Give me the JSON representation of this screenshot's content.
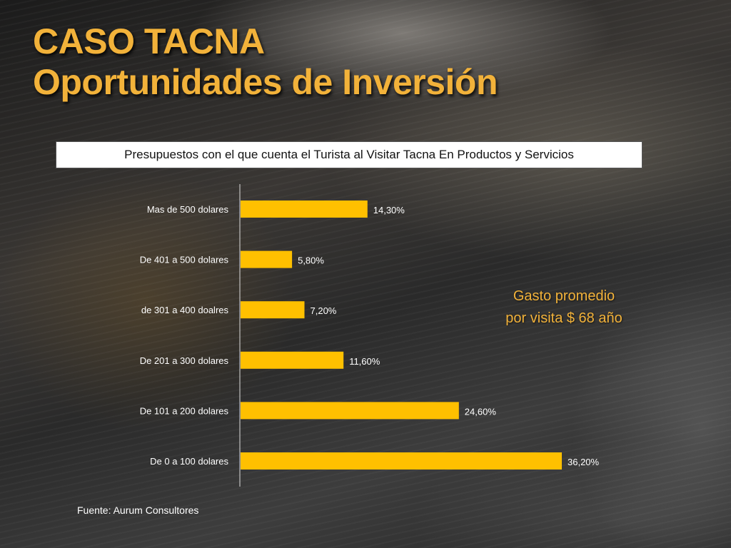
{
  "title": {
    "line1": "CASO TACNA",
    "line2": "Oportunidades de Inversión"
  },
  "chart_data": {
    "type": "bar",
    "orientation": "horizontal",
    "title": "Presupuestos con el que cuenta el Turista al Visitar Tacna En Productos y Servicios",
    "categories": [
      "Mas de 500 dolares",
      "De 401 a 500 dolares",
      "de 301 a 400 doalres",
      "De 201 a 300 dolares",
      "De 101 a 200 dolares",
      "De 0 a 100 dolares"
    ],
    "values": [
      14.3,
      5.8,
      7.2,
      11.6,
      24.6,
      36.2
    ],
    "value_labels": [
      "14,30%",
      "5,80%",
      "7,20%",
      "11,60%",
      "24,60%",
      "36,20%"
    ],
    "xlim": [
      0,
      40
    ],
    "bar_color": "#ffc000",
    "grid": false,
    "legend": "none"
  },
  "note": {
    "line1": "Gasto promedio",
    "line2": "por visita $ 68 año"
  },
  "source": "Fuente: Aurum Consultores",
  "colors": {
    "title": "#f2b23a",
    "bar": "#ffc000",
    "axis": "#dddddd",
    "text": "#ffffff"
  }
}
